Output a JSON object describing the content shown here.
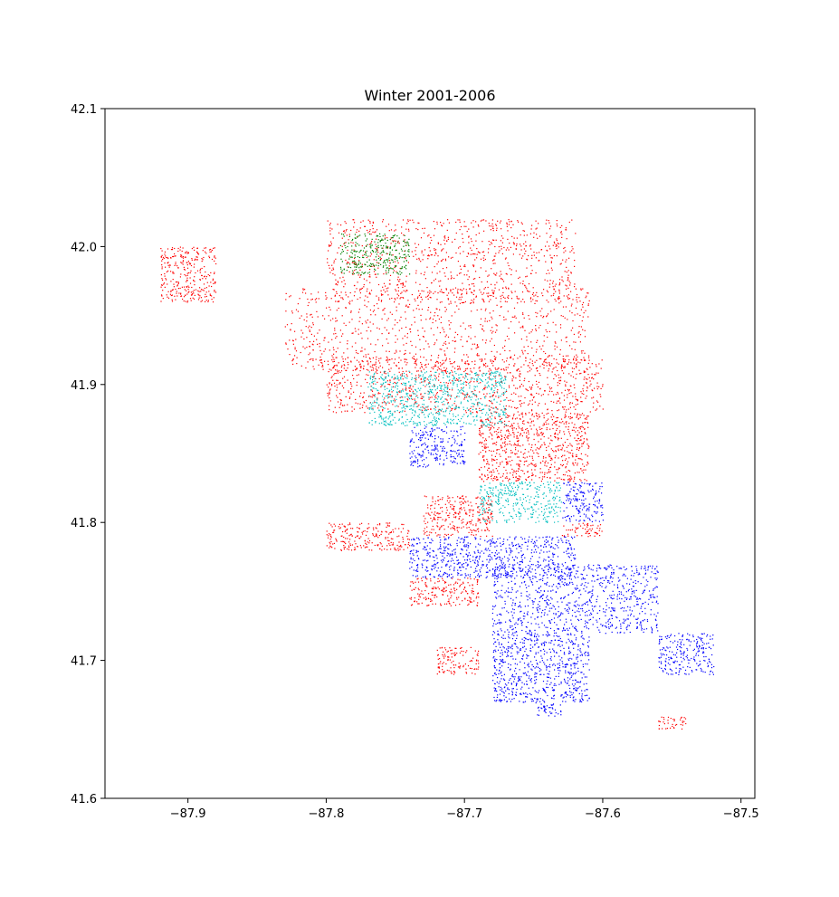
{
  "chart_data": {
    "type": "scatter",
    "title": "Winter 2001-2006",
    "xlabel": "",
    "ylabel": "",
    "xlim": [
      -87.96,
      -87.49
    ],
    "ylim": [
      41.6,
      42.1
    ],
    "x_ticks": [
      -87.9,
      -87.8,
      -87.7,
      -87.6,
      -87.5
    ],
    "x_tick_labels": [
      "−87.9",
      "−87.8",
      "−87.7",
      "−87.6",
      "−87.5"
    ],
    "y_ticks": [
      41.6,
      41.7,
      41.8,
      41.9,
      42.0,
      42.1
    ],
    "y_tick_labels": [
      "41.6",
      "41.7",
      "41.8",
      "41.9",
      "42.0",
      "42.1"
    ],
    "grid": false,
    "legend": "none",
    "series": [
      {
        "color": "#ff0000",
        "regions": [
          {
            "x0": -87.8,
            "x1": -87.62,
            "y0": 41.96,
            "y1": 42.02
          },
          {
            "x0": -87.83,
            "x1": -87.61,
            "y0": 41.91,
            "y1": 41.97
          },
          {
            "x0": -87.8,
            "x1": -87.6,
            "y0": 41.88,
            "y1": 41.92
          },
          {
            "x0": -87.69,
            "x1": -87.61,
            "y0": 41.83,
            "y1": 41.88
          },
          {
            "x0": -87.73,
            "x1": -87.68,
            "y0": 41.79,
            "y1": 41.82
          },
          {
            "x0": -87.8,
            "x1": -87.74,
            "y0": 41.78,
            "y1": 41.8
          },
          {
            "x0": -87.74,
            "x1": -87.69,
            "y0": 41.74,
            "y1": 41.76
          },
          {
            "x0": -87.72,
            "x1": -87.69,
            "y0": 41.69,
            "y1": 41.71
          },
          {
            "x0": -87.92,
            "x1": -87.88,
            "y0": 41.96,
            "y1": 42.0
          },
          {
            "x0": -87.63,
            "x1": -87.6,
            "y0": 41.79,
            "y1": 41.8
          },
          {
            "x0": -87.56,
            "x1": -87.54,
            "y0": 41.65,
            "y1": 41.66
          }
        ]
      },
      {
        "color": "#0000ff",
        "regions": [
          {
            "x0": -87.74,
            "x1": -87.7,
            "y0": 41.84,
            "y1": 41.87
          },
          {
            "x0": -87.74,
            "x1": -87.62,
            "y0": 41.76,
            "y1": 41.79
          },
          {
            "x0": -87.68,
            "x1": -87.56,
            "y0": 41.72,
            "y1": 41.77
          },
          {
            "x0": -87.68,
            "x1": -87.61,
            "y0": 41.67,
            "y1": 41.72
          },
          {
            "x0": -87.63,
            "x1": -87.6,
            "y0": 41.8,
            "y1": 41.83
          },
          {
            "x0": -87.56,
            "x1": -87.52,
            "y0": 41.69,
            "y1": 41.72
          },
          {
            "x0": -87.65,
            "x1": -87.63,
            "y0": 41.66,
            "y1": 41.67
          }
        ]
      },
      {
        "color": "#00bfbf",
        "regions": [
          {
            "x0": -87.77,
            "x1": -87.67,
            "y0": 41.87,
            "y1": 41.91
          },
          {
            "x0": -87.69,
            "x1": -87.63,
            "y0": 41.8,
            "y1": 41.83
          }
        ]
      },
      {
        "color": "#008000",
        "regions": [
          {
            "x0": -87.79,
            "x1": -87.74,
            "y0": 41.98,
            "y1": 42.01
          }
        ]
      }
    ]
  }
}
